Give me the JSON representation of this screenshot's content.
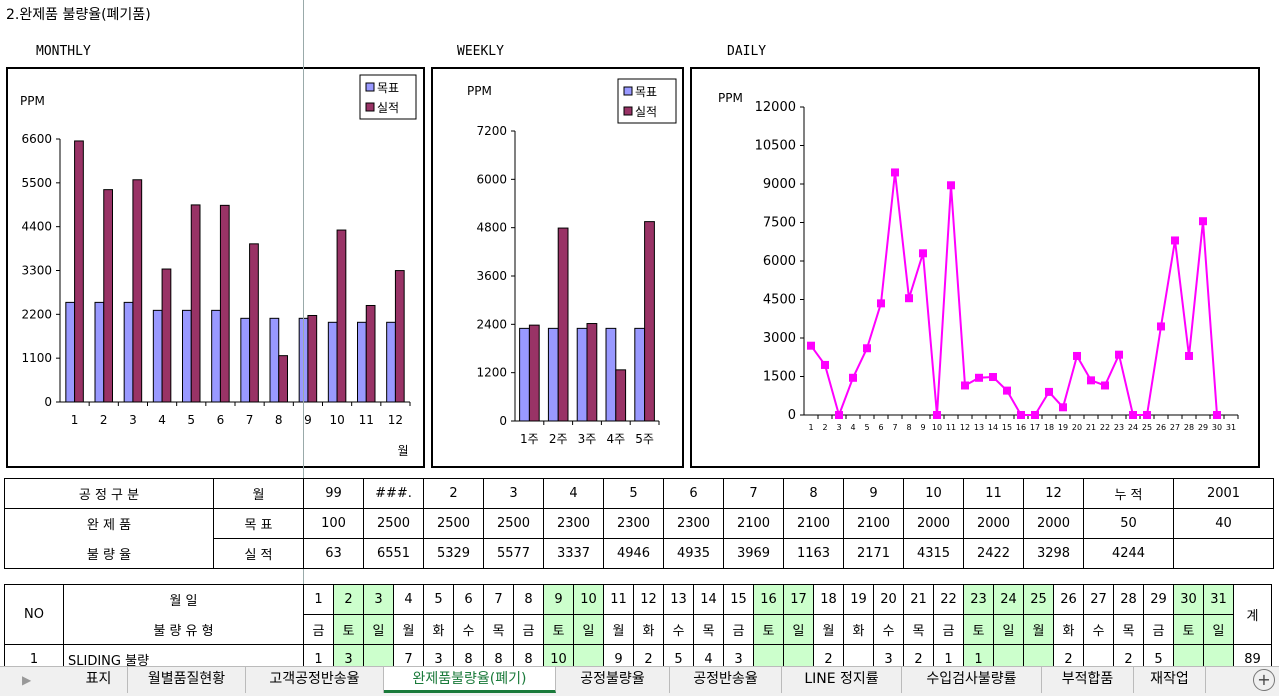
{
  "sheet_title": "2.완제품 불량율(폐기품)",
  "sections": {
    "monthly": "MONTHLY",
    "weekly": "WEEKLY",
    "daily": "DAILY"
  },
  "legend": {
    "target": "목표",
    "actual": "실적"
  },
  "colors": {
    "target": "#9999ff",
    "actual": "#993366",
    "daily_line": "#ff00ff"
  },
  "chart_data": [
    {
      "type": "bar",
      "ylabel": "PPM",
      "xlabel": "월",
      "categories": [
        "1",
        "2",
        "3",
        "4",
        "5",
        "6",
        "7",
        "8",
        "9",
        "10",
        "11",
        "12"
      ],
      "ylim": [
        0,
        6600
      ],
      "yticks": [
        0,
        1100,
        2200,
        3300,
        4400,
        5500,
        6600
      ],
      "legend_position": "top-right",
      "series": [
        {
          "name": "목표",
          "values": [
            2500,
            2500,
            2500,
            2300,
            2300,
            2300,
            2100,
            2100,
            2100,
            2000,
            2000,
            2000
          ]
        },
        {
          "name": "실적",
          "values": [
            6551,
            5329,
            5577,
            3337,
            4946,
            4935,
            3969,
            1163,
            2171,
            4315,
            2422,
            3298
          ]
        }
      ]
    },
    {
      "type": "bar",
      "ylabel": "PPM",
      "categories": [
        "1주",
        "2주",
        "3주",
        "4주",
        "5주"
      ],
      "ylim": [
        0,
        7200
      ],
      "yticks": [
        0,
        1200,
        2400,
        3600,
        4800,
        6000,
        7200
      ],
      "legend_position": "top-right",
      "series": [
        {
          "name": "목표",
          "values": [
            2300,
            2300,
            2300,
            2300,
            2300
          ]
        },
        {
          "name": "실적",
          "values": [
            2380,
            4790,
            2420,
            1270,
            4950
          ]
        }
      ]
    },
    {
      "type": "line",
      "ylabel": "PPM",
      "x": [
        1,
        2,
        3,
        4,
        5,
        6,
        7,
        8,
        9,
        10,
        11,
        12,
        13,
        14,
        15,
        16,
        17,
        18,
        19,
        20,
        21,
        22,
        23,
        24,
        25,
        26,
        27,
        28,
        29,
        30,
        31
      ],
      "ylim": [
        0,
        12000
      ],
      "yticks": [
        0,
        1500,
        3000,
        4500,
        6000,
        7500,
        9000,
        10500,
        12000
      ],
      "series": [
        {
          "values": [
            2700,
            1950,
            0,
            1450,
            2600,
            4350,
            9450,
            4550,
            6300,
            0,
            8950,
            1150,
            1450,
            1480,
            950,
            0,
            0,
            900,
            300,
            2300,
            1350,
            1150,
            2350,
            0,
            0,
            3450,
            6800,
            2300,
            7550,
            0,
            null
          ]
        }
      ]
    }
  ],
  "summary_table": {
    "header_label": "공 정 구 분",
    "month_label": "월",
    "year_col": "99",
    "month_cols": [
      "###.",
      "2",
      "3",
      "4",
      "5",
      "6",
      "7",
      "8",
      "9",
      "10",
      "11",
      "12"
    ],
    "cum_label": "누  적",
    "year2001": "2001",
    "row_label_1": "완 제 품",
    "row_label_2": "불 량 율",
    "target_label": "목  표",
    "actual_label": "실  적",
    "target_values": [
      "100",
      "2500",
      "2500",
      "2500",
      "2300",
      "2300",
      "2300",
      "2100",
      "2100",
      "2100",
      "2000",
      "2000",
      "2000",
      "50",
      "40"
    ],
    "actual_values": [
      "63",
      "6551",
      "5329",
      "5577",
      "3337",
      "4946",
      "4935",
      "3969",
      "1163",
      "2171",
      "4315",
      "2422",
      "3298",
      "4244",
      ""
    ]
  },
  "daily_table": {
    "no_label": "NO",
    "month_day_label": "월      일",
    "defect_type_label": "불 량 유 형",
    "total_label": "계",
    "days": [
      "1",
      "2",
      "3",
      "4",
      "5",
      "6",
      "7",
      "8",
      "9",
      "10",
      "11",
      "12",
      "13",
      "14",
      "15",
      "16",
      "17",
      "18",
      "19",
      "20",
      "21",
      "22",
      "23",
      "24",
      "25",
      "26",
      "27",
      "28",
      "29",
      "30",
      "31"
    ],
    "weekdays": [
      "금",
      "토",
      "일",
      "월",
      "화",
      "수",
      "목",
      "금",
      "토",
      "일",
      "월",
      "화",
      "수",
      "목",
      "금",
      "토",
      "일",
      "월",
      "화",
      "수",
      "목",
      "금",
      "토",
      "일",
      "월",
      "화",
      "수",
      "목",
      "금",
      "토",
      "일"
    ],
    "rows": [
      {
        "no": "1",
        "type": "SLIDING 불량",
        "values": [
          "1",
          "3",
          "",
          "7",
          "3",
          "8",
          "8",
          "8",
          "10",
          "",
          "9",
          "2",
          "5",
          "4",
          "3",
          "",
          "",
          "2",
          "",
          "3",
          "2",
          "1",
          "1",
          "",
          "",
          "2",
          "",
          "2",
          "5",
          "",
          ""
        ],
        "total": "89"
      }
    ]
  },
  "tabs": [
    "표지",
    "월별품질현황",
    "고객공정반송율",
    "완제품불량율(폐기)",
    "공정불량율",
    "공정반송율",
    "LINE 정지률",
    "수입검사불량률",
    "부적합품",
    "재작업"
  ],
  "active_tab": "완제품불량율(폐기)"
}
